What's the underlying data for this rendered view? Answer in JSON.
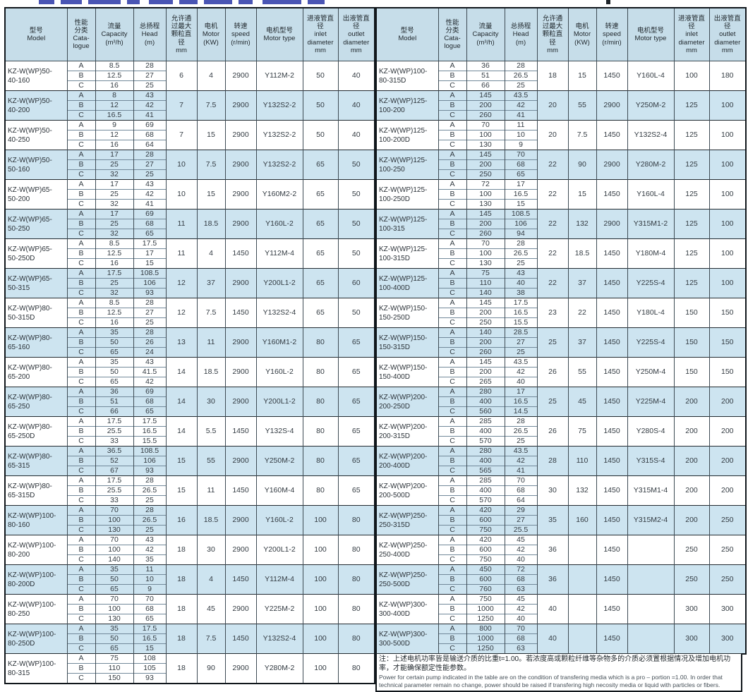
{
  "columns": [
    {
      "id": "model",
      "label": "型号\nModel"
    },
    {
      "id": "grade",
      "label": "性能\n分类\nCata-\nlogue"
    },
    {
      "id": "capacity",
      "label": "流量\nCapacity\n(m³/h)"
    },
    {
      "id": "head",
      "label": "总扬程\nHead\n(m)"
    },
    {
      "id": "particle",
      "label": "允许通\n过最大\n颗粒直\n径\nmm"
    },
    {
      "id": "motor",
      "label": "电机\nMotor\n(KW)"
    },
    {
      "id": "speed",
      "label": "转速\nspeed\n(r/min)"
    },
    {
      "id": "motor_type",
      "label": "电机型号\nMotor type"
    },
    {
      "id": "inlet",
      "label": "进液管直\n径\ninlet\ndiameter\nmm"
    },
    {
      "id": "outlet",
      "label": "出液管直\n径\noutlet\ndiameter\nmm"
    }
  ],
  "grades": [
    "A",
    "B",
    "C"
  ],
  "colors": {
    "header_bg": "#c6dde9",
    "row_alt_bg": "#cde4f0",
    "grid": "#3e4b54",
    "outer_border": "#10161b"
  },
  "tables": [
    {
      "side": "left",
      "rows": [
        {
          "model": "KZ-W(WP)50-\n40-160",
          "capacity": [
            "8.5",
            "12.5",
            "16"
          ],
          "head": [
            "28",
            "27",
            "25"
          ],
          "particle": "6",
          "motor": "4",
          "speed": "2900",
          "motor_type": "Y112M-2",
          "inlet": "50",
          "outlet": "40"
        },
        {
          "model": "KZ-W(WP)50-\n40-200",
          "capacity": [
            "8",
            "12",
            "16.5"
          ],
          "head": [
            "43",
            "42",
            "41"
          ],
          "particle": "7",
          "motor": "7.5",
          "speed": "2900",
          "motor_type": "Y132S2-2",
          "inlet": "50",
          "outlet": "40"
        },
        {
          "model": "KZ-W(WP)50-\n40-250",
          "capacity": [
            "9",
            "12",
            "16"
          ],
          "head": [
            "69",
            "68",
            "64"
          ],
          "particle": "7",
          "motor": "15",
          "speed": "2900",
          "motor_type": "Y132S2-2",
          "inlet": "50",
          "outlet": "40"
        },
        {
          "model": "KZ-W(WP)50-\n50-160",
          "capacity": [
            "17",
            "25",
            "32"
          ],
          "head": [
            "28",
            "27",
            "25"
          ],
          "particle": "10",
          "motor": "7.5",
          "speed": "2900",
          "motor_type": "Y132S2-2",
          "inlet": "65",
          "outlet": "50"
        },
        {
          "model": "KZ-W(WP)65-\n50-200",
          "capacity": [
            "17",
            "25",
            "32"
          ],
          "head": [
            "43",
            "42",
            "41"
          ],
          "particle": "10",
          "motor": "15",
          "speed": "2900",
          "motor_type": "Y160M2-2",
          "inlet": "65",
          "outlet": "50"
        },
        {
          "model": "KZ-W(WP)65-\n50-250",
          "capacity": [
            "17",
            "25",
            "32"
          ],
          "head": [
            "69",
            "68",
            "65"
          ],
          "particle": "11",
          "motor": "18.5",
          "speed": "2900",
          "motor_type": "Y160L-2",
          "inlet": "65",
          "outlet": "50"
        },
        {
          "model": "KZ-W(WP)65-\n50-250D",
          "capacity": [
            "8.5",
            "12.5",
            "16"
          ],
          "head": [
            "17.5",
            "17",
            "15"
          ],
          "particle": "11",
          "motor": "4",
          "speed": "1450",
          "motor_type": "Y112M-4",
          "inlet": "65",
          "outlet": "50"
        },
        {
          "model": "KZ-W(WP)65-\n50-315",
          "capacity": [
            "17.5",
            "25",
            "32"
          ],
          "head": [
            "108.5",
            "106",
            "93"
          ],
          "particle": "12",
          "motor": "37",
          "speed": "2900",
          "motor_type": "Y200L1-2",
          "inlet": "65",
          "outlet": "60"
        },
        {
          "model": "KZ-W(WP)80-\n50-315D",
          "capacity": [
            "8.5",
            "12.5",
            "16"
          ],
          "head": [
            "28",
            "27",
            "25"
          ],
          "particle": "12",
          "motor": "7.5",
          "speed": "1450",
          "motor_type": "Y132S2-4",
          "inlet": "65",
          "outlet": "50"
        },
        {
          "model": "KZ-W(WP)80-\n65-160",
          "capacity": [
            "35",
            "50",
            "65"
          ],
          "head": [
            "28",
            "26",
            "24"
          ],
          "particle": "13",
          "motor": "11",
          "speed": "2900",
          "motor_type": "Y160M1-2",
          "inlet": "80",
          "outlet": "65"
        },
        {
          "model": "KZ-W(WP)80-\n65-200",
          "capacity": [
            "35",
            "50",
            "65"
          ],
          "head": [
            "43",
            "41.5",
            "42"
          ],
          "particle": "14",
          "motor": "18.5",
          "speed": "2900",
          "motor_type": "Y160L-2",
          "inlet": "80",
          "outlet": "65"
        },
        {
          "model": "KZ-W(WP)80-\n65-250",
          "capacity": [
            "36",
            "51",
            "66"
          ],
          "head": [
            "69",
            "68",
            "65"
          ],
          "particle": "14",
          "motor": "30",
          "speed": "2900",
          "motor_type": "Y200L1-2",
          "inlet": "80",
          "outlet": "65"
        },
        {
          "model": "KZ-W(WP)80-\n65-250D",
          "capacity": [
            "17.5",
            "25.5",
            "33"
          ],
          "head": [
            "17.5",
            "16.5",
            "15.5"
          ],
          "particle": "14",
          "motor": "5.5",
          "speed": "1450",
          "motor_type": "Y132S-4",
          "inlet": "80",
          "outlet": "65"
        },
        {
          "model": "KZ-W(WP)80-\n65-315",
          "capacity": [
            "36.5",
            "52",
            "67"
          ],
          "head": [
            "108.5",
            "106",
            "93"
          ],
          "particle": "15",
          "motor": "55",
          "speed": "2900",
          "motor_type": "Y250M-2",
          "inlet": "80",
          "outlet": "65"
        },
        {
          "model": "KZ-W(WP)80-\n65-315D",
          "capacity": [
            "17.5",
            "25.5",
            "33"
          ],
          "head": [
            "28",
            "26.5",
            "25"
          ],
          "particle": "15",
          "motor": "11",
          "speed": "1450",
          "motor_type": "Y160M-4",
          "inlet": "80",
          "outlet": "65"
        },
        {
          "model": "KZ-W(WP)100-\n80-160",
          "capacity": [
            "70",
            "100",
            "130"
          ],
          "head": [
            "28",
            "26.5",
            "25"
          ],
          "particle": "16",
          "motor": "18.5",
          "speed": "2900",
          "motor_type": "Y160L-2",
          "inlet": "100",
          "outlet": "80"
        },
        {
          "model": "KZ-W(WP)100-\n80-200",
          "capacity": [
            "70",
            "100",
            "140"
          ],
          "head": [
            "43",
            "42",
            "35"
          ],
          "particle": "18",
          "motor": "30",
          "speed": "2900",
          "motor_type": "Y200L1-2",
          "inlet": "100",
          "outlet": "80"
        },
        {
          "model": "KZ-W(WP)100-\n80-200D",
          "capacity": [
            "35",
            "50",
            "65"
          ],
          "head": [
            "11",
            "10",
            "9"
          ],
          "particle": "18",
          "motor": "4",
          "speed": "1450",
          "motor_type": "Y112M-4",
          "inlet": "100",
          "outlet": "80"
        },
        {
          "model": "KZ-W(WP)100-\n80-250",
          "capacity": [
            "70",
            "100",
            "130"
          ],
          "head": [
            "70",
            "68",
            "65"
          ],
          "particle": "18",
          "motor": "45",
          "speed": "2900",
          "motor_type": "Y225M-2",
          "inlet": "100",
          "outlet": "80"
        },
        {
          "model": "KZ-W(WP)100-\n80-250D",
          "capacity": [
            "35",
            "50",
            "65"
          ],
          "head": [
            "17.5",
            "16.5",
            "15"
          ],
          "particle": "18",
          "motor": "7.5",
          "speed": "1450",
          "motor_type": "Y132S2-4",
          "inlet": "100",
          "outlet": "80"
        },
        {
          "model": "KZ-W(WP)100-\n80-315",
          "capacity": [
            "75",
            "110",
            "150"
          ],
          "head": [
            "108",
            "105",
            "93"
          ],
          "particle": "18",
          "motor": "90",
          "speed": "2900",
          "motor_type": "Y280M-2",
          "inlet": "100",
          "outlet": "80"
        }
      ]
    },
    {
      "side": "right",
      "rows": [
        {
          "model": "KZ-W(WP)100-\n80-315D",
          "capacity": [
            "36",
            "51",
            "66"
          ],
          "head": [
            "28",
            "26.5",
            "25"
          ],
          "particle": "18",
          "motor": "15",
          "speed": "1450",
          "motor_type": "Y160L-4",
          "inlet": "100",
          "outlet": "180"
        },
        {
          "model": "KZ-W(WP)125-\n100-200",
          "capacity": [
            "145",
            "200",
            "260"
          ],
          "head": [
            "43.5",
            "42",
            "41"
          ],
          "particle": "20",
          "motor": "55",
          "speed": "2900",
          "motor_type": "Y250M-2",
          "inlet": "125",
          "outlet": "100"
        },
        {
          "model": "KZ-W(WP)125-\n100-200D",
          "capacity": [
            "70",
            "100",
            "130"
          ],
          "head": [
            "11",
            "10",
            "9"
          ],
          "particle": "20",
          "motor": "7.5",
          "speed": "1450",
          "motor_type": "Y132S2-4",
          "inlet": "125",
          "outlet": "100"
        },
        {
          "model": "KZ-W(WP)125-\n100-250",
          "capacity": [
            "145",
            "200",
            "250"
          ],
          "head": [
            "70",
            "68",
            "65"
          ],
          "particle": "22",
          "motor": "90",
          "speed": "2900",
          "motor_type": "Y280M-2",
          "inlet": "125",
          "outlet": "100"
        },
        {
          "model": "KZ-W(WP)125-\n100-250D",
          "capacity": [
            "72",
            "100",
            "130"
          ],
          "head": [
            "17",
            "16.5",
            "15"
          ],
          "particle": "22",
          "motor": "15",
          "speed": "1450",
          "motor_type": "Y160L-4",
          "inlet": "125",
          "outlet": "100"
        },
        {
          "model": "KZ-W(WP)125-\n100-315",
          "capacity": [
            "145",
            "200",
            "260"
          ],
          "head": [
            "108.5",
            "106",
            "94"
          ],
          "particle": "22",
          "motor": "132",
          "speed": "2900",
          "motor_type": "Y315M1-2",
          "inlet": "125",
          "outlet": "100"
        },
        {
          "model": "KZ-W(WP)125-\n100-315D",
          "capacity": [
            "70",
            "100",
            "130"
          ],
          "head": [
            "28",
            "26.5",
            "25"
          ],
          "particle": "22",
          "motor": "18.5",
          "speed": "1450",
          "motor_type": "Y180M-4",
          "inlet": "125",
          "outlet": "100"
        },
        {
          "model": "KZ-W(WP)125-\n100-400D",
          "capacity": [
            "75",
            "110",
            "140"
          ],
          "head": [
            "43",
            "40",
            "38"
          ],
          "particle": "22",
          "motor": "37",
          "speed": "1450",
          "motor_type": "Y225S-4",
          "inlet": "125",
          "outlet": "100"
        },
        {
          "model": "KZ-W(WP)150-\n150-250D",
          "capacity": [
            "145",
            "200",
            "250"
          ],
          "head": [
            "17.5",
            "16.5",
            "15.5"
          ],
          "particle": "23",
          "motor": "22",
          "speed": "1450",
          "motor_type": "Y180L-4",
          "inlet": "150",
          "outlet": "150"
        },
        {
          "model": "KZ-W(WP)150-\n150-315D",
          "capacity": [
            "140",
            "200",
            "260"
          ],
          "head": [
            "28.5",
            "27",
            "25"
          ],
          "particle": "25",
          "motor": "37",
          "speed": "1450",
          "motor_type": "Y225S-4",
          "inlet": "150",
          "outlet": "150"
        },
        {
          "model": "KZ-W(WP)150-\n150-400D",
          "capacity": [
            "145",
            "200",
            "265"
          ],
          "head": [
            "43.5",
            "42",
            "40"
          ],
          "particle": "26",
          "motor": "55",
          "speed": "1450",
          "motor_type": "Y250M-4",
          "inlet": "150",
          "outlet": "150"
        },
        {
          "model": "KZ-W(WP)200-\n200-250D",
          "capacity": [
            "280",
            "400",
            "560"
          ],
          "head": [
            "17",
            "16.5",
            "14.5"
          ],
          "particle": "25",
          "motor": "45",
          "speed": "1450",
          "motor_type": "Y225M-4",
          "inlet": "200",
          "outlet": "200"
        },
        {
          "model": "KZ-W(WP)200-\n200-315D",
          "capacity": [
            "285",
            "400",
            "570"
          ],
          "head": [
            "28",
            "26.5",
            "25"
          ],
          "particle": "26",
          "motor": "75",
          "speed": "1450",
          "motor_type": "Y280S-4",
          "inlet": "200",
          "outlet": "200"
        },
        {
          "model": "KZ-W(WP)200-\n200-400D",
          "capacity": [
            "280",
            "400",
            "565"
          ],
          "head": [
            "43.5",
            "42",
            "41"
          ],
          "particle": "28",
          "motor": "110",
          "speed": "1450",
          "motor_type": "Y315S-4",
          "inlet": "200",
          "outlet": "200"
        },
        {
          "model": "KZ-W(WP)200-\n200-500D",
          "capacity": [
            "285",
            "400",
            "570"
          ],
          "head": [
            "70",
            "68",
            "64"
          ],
          "particle": "30",
          "motor": "132",
          "speed": "1450",
          "motor_type": "Y315M1-4",
          "inlet": "200",
          "outlet": "200"
        },
        {
          "model": "KZ-W(WP)250-\n250-315D",
          "capacity": [
            "420",
            "600",
            "750"
          ],
          "head": [
            "29",
            "27",
            "25.5"
          ],
          "particle": "35",
          "motor": "160",
          "speed": "1450",
          "motor_type": "Y315M2-4",
          "inlet": "200",
          "outlet": "250"
        },
        {
          "model": "KZ-W(WP)250-\n250-400D",
          "capacity": [
            "420",
            "600",
            "750"
          ],
          "head": [
            "45",
            "42",
            "40"
          ],
          "particle": "36",
          "motor": "",
          "speed": "1450",
          "motor_type": "",
          "inlet": "250",
          "outlet": "250"
        },
        {
          "model": "KZ-W(WP)250-\n250-500D",
          "capacity": [
            "450",
            "600",
            "760"
          ],
          "head": [
            "72",
            "68",
            "63"
          ],
          "particle": "36",
          "motor": "",
          "speed": "1450",
          "motor_type": "",
          "inlet": "250",
          "outlet": "250"
        },
        {
          "model": "KZ-W(WP)300-\n300-400D",
          "capacity": [
            "750",
            "1000",
            "1250"
          ],
          "head": [
            "45",
            "42",
            "40"
          ],
          "particle": "40",
          "motor": "",
          "speed": "1450",
          "motor_type": "",
          "inlet": "300",
          "outlet": "300"
        },
        {
          "model": "KZ-W(WP)300-\n300-500D",
          "capacity": [
            "800",
            "1000",
            "1250"
          ],
          "head": [
            "70",
            "68",
            "63"
          ],
          "particle": "40",
          "motor": "",
          "speed": "1450",
          "motor_type": "",
          "inlet": "300",
          "outlet": "300"
        }
      ]
    }
  ],
  "note": {
    "zh": "注：上述电机功率皆是输送介质的比重t=1.00。若浓度高或颗粒纤维等杂物多的介质必须置根据情况及增加电机功率，才能确保额定性能参数。",
    "en": "Power for certain pump indicated in the table are on the condition of transfering media which is a pro – portion =1.00. In order that technical parameter remain no change, power should be raised if transfering high necosity media or liquid with particles or fibers."
  }
}
